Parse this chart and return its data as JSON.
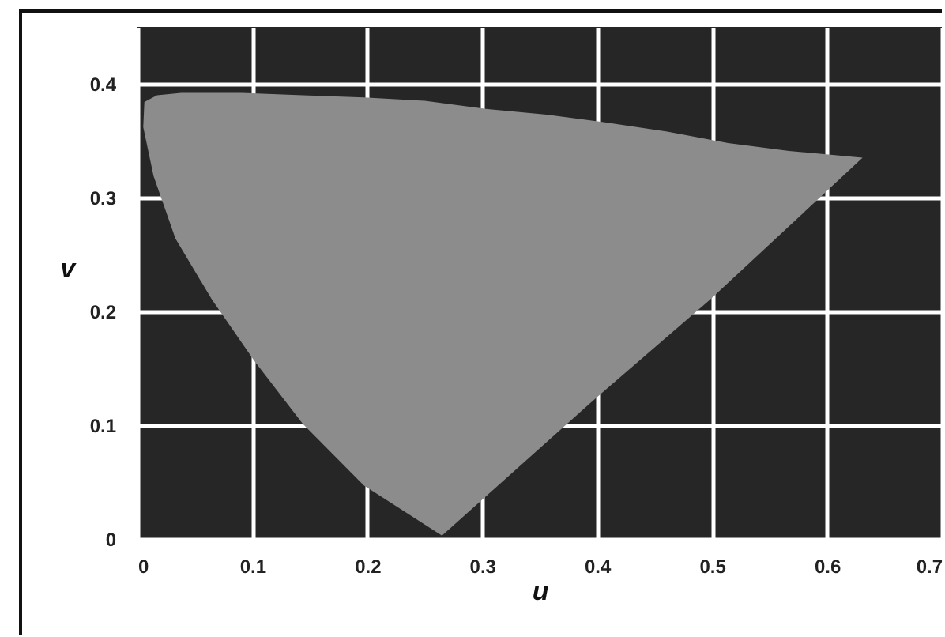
{
  "chart_data": {
    "type": "area",
    "xlabel": "u",
    "ylabel": "v",
    "xlim": [
      0,
      0.7
    ],
    "ylim": [
      0,
      0.45
    ],
    "xticks": [
      {
        "value": 0,
        "label": "0"
      },
      0.1,
      0.2,
      0.3,
      0.4,
      0.5,
      0.6,
      0.7
    ],
    "yticks": [
      {
        "value": 0,
        "label": "0"
      },
      0.1,
      0.2,
      0.3,
      0.4
    ],
    "grid": true,
    "marker": "none",
    "series": [
      {
        "color": "#8c8c8c",
        "x": [
          0.265,
          0.197,
          0.144,
          0.102,
          0.065,
          0.033,
          0.014,
          0.005,
          0.006,
          0.017,
          0.038,
          0.091,
          0.144,
          0.197,
          0.25,
          0.303,
          0.356,
          0.408,
          0.461,
          0.514,
          0.567,
          0.631,
          0.498,
          0.398,
          0.265
        ],
        "values": [
          0.003,
          0.047,
          0.101,
          0.156,
          0.21,
          0.264,
          0.319,
          0.362,
          0.384,
          0.39,
          0.392,
          0.392,
          0.39,
          0.388,
          0.385,
          0.378,
          0.373,
          0.366,
          0.358,
          0.348,
          0.341,
          0.335,
          0.21,
          0.123,
          0.003
        ]
      }
    ]
  }
}
